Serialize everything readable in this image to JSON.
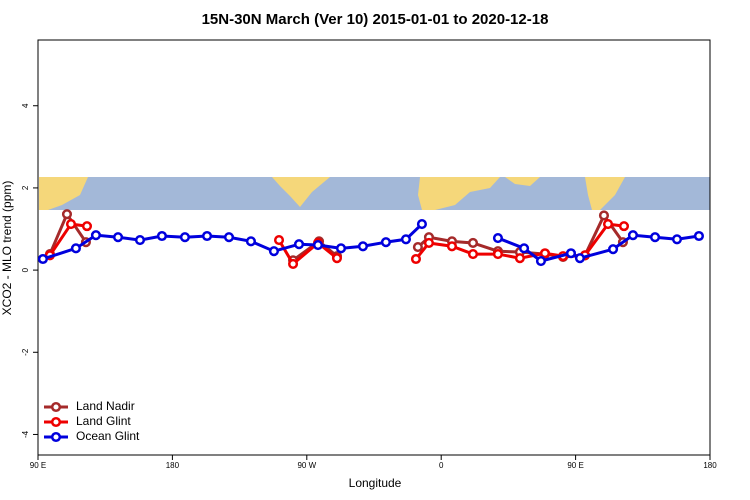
{
  "chart_data": {
    "type": "line",
    "title": "15N-30N March (Ver 10)   2015-01-01 to 2020-12-18",
    "x_label": "Longitude",
    "y_label": "XCO2 - MLO trend (ppm)",
    "xlim": [
      90,
      540
    ],
    "xticks": [
      {
        "value": 90,
        "label": "90 E"
      },
      {
        "value": 180,
        "label": "180"
      },
      {
        "value": 270,
        "label": "90 W"
      },
      {
        "value": 360,
        "label": "0"
      },
      {
        "value": 450,
        "label": "90 E"
      },
      {
        "value": 540,
        "label": "180"
      }
    ],
    "ylim": [
      -4.5,
      5.6
    ],
    "yticks": [
      -4,
      -2,
      0,
      2,
      4
    ],
    "legend": "bottom-left",
    "series": [
      {
        "name": "Land Nadir",
        "color": "#a52a2a",
        "x": [
          98.0,
          109.4,
          122.1,
          null,
          260.8,
          278.2,
          290.2,
          null,
          344.4,
          351.8,
          367.2,
          381.3,
          398.0,
          412.7,
          429.5,
          441.6,
          456.3,
          469.0,
          481.7
        ],
        "values": [
          0.39,
          1.36,
          0.68,
          null,
          0.24,
          0.7,
          0.34,
          null,
          0.56,
          0.8,
          0.7,
          0.66,
          0.46,
          0.44,
          0.39,
          0.32,
          0.36,
          1.33,
          0.68
        ]
      },
      {
        "name": "Land Glint",
        "color": "#ee0000",
        "x": [
          98.0,
          112.1,
          122.8,
          null,
          251.4,
          260.8,
          277.5,
          290.2,
          null,
          343.1,
          351.8,
          367.2,
          381.3,
          398.0,
          412.7,
          429.5,
          441.6,
          456.3,
          471.7,
          482.4
        ],
        "values": [
          0.36,
          1.12,
          1.07,
          null,
          0.73,
          0.15,
          0.66,
          0.29,
          null,
          0.27,
          0.66,
          0.58,
          0.39,
          0.39,
          0.29,
          0.41,
          0.34,
          0.36,
          1.12,
          1.07
        ]
      },
      {
        "name": "Ocean Glint",
        "color": "#0000dd",
        "x": [
          93.3,
          115.4,
          128.8,
          143.6,
          158.3,
          173.0,
          188.4,
          203.2,
          217.9,
          232.6,
          248.0,
          264.8,
          277.5,
          292.9,
          307.6,
          323.0,
          336.4,
          347.1,
          null,
          398.0,
          415.5,
          426.8,
          446.9,
          452.9,
          475.1,
          488.4,
          503.2,
          517.9,
          532.6
        ],
        "values": [
          0.27,
          0.53,
          0.85,
          0.8,
          0.73,
          0.83,
          0.8,
          0.83,
          0.8,
          0.7,
          0.46,
          0.63,
          0.61,
          0.53,
          0.58,
          0.68,
          0.75,
          1.12,
          null,
          0.78,
          0.53,
          0.22,
          0.41,
          0.29,
          0.51,
          0.85,
          0.8,
          0.75,
          0.83
        ]
      }
    ]
  }
}
